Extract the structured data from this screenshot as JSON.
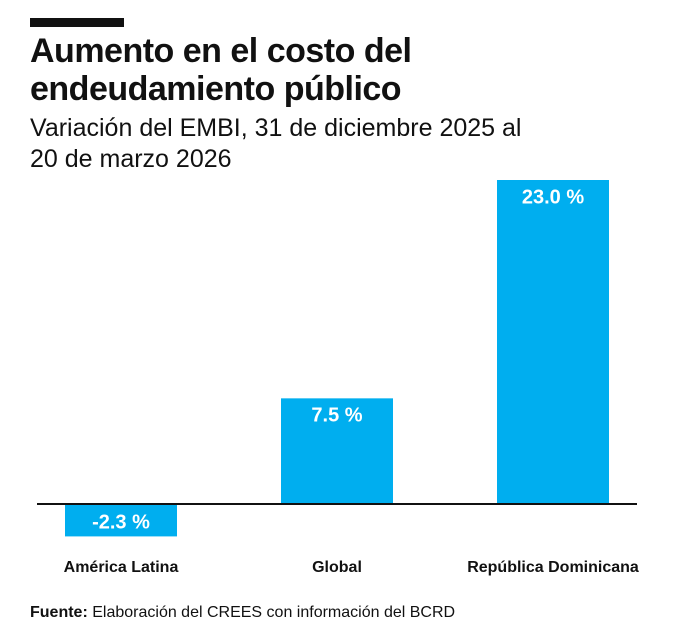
{
  "chart_data": {
    "type": "bar",
    "title": "Aumento en el costo del endeudamiento público",
    "subtitle": "Variación del EMBI, 31 de diciembre 2025 al 20 de marzo 2026",
    "categories": [
      "América Latina",
      "Global",
      "República Dominicana"
    ],
    "values": [
      -2.3,
      7.5,
      23.0
    ],
    "value_labels": [
      "-2.3 %",
      "7.5 %",
      "23.0 %"
    ],
    "color": "#00aeef",
    "source_label": "Fuente:",
    "source": "Elaboración del CREES con información del BCRD"
  }
}
